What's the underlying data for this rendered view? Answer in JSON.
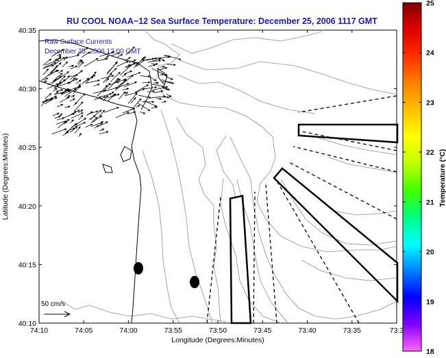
{
  "title": "RU COOL  NOAA−12  Sea Surface Temperature:  December 25, 2006 1117 GMT",
  "legend": {
    "raw_label": "Raw Surface Currents",
    "raw_time": "December 25, 2006 12:00 GMT",
    "scale_label": "50 cm/s"
  },
  "axes": {
    "xlabel": "Longitude (Degrees:Minutes)",
    "ylabel": "Latitude (Degrees:Minutes)",
    "x_ticks": [
      "74:10",
      "74:05",
      "74:00",
      "73:55",
      "73:50",
      "73:45",
      "73:40",
      "73:35",
      "73:3"
    ],
    "y_ticks": [
      "40:35",
      "40:30",
      "40:25",
      "40:20",
      "40:15",
      "40:10"
    ]
  },
  "colorbar": {
    "label": "Temperature (°C)",
    "ticks": [
      "25",
      "24",
      "23",
      "22",
      "21",
      "20",
      "19",
      "18"
    ],
    "min": 18,
    "max": 25,
    "colormap": [
      "#ff66ff",
      "#8000ff",
      "#0000ff",
      "#0080ff",
      "#00ffff",
      "#00ff80",
      "#40ff00",
      "#c0ff00",
      "#ffff00",
      "#ffc000",
      "#ff8000",
      "#ff3000",
      "#e00000",
      "#800000"
    ]
  },
  "colors": {
    "title": "#1a1aa6",
    "legend_text": "#1a1aa6",
    "axis": "#000000",
    "contour": "#8c8c8c"
  }
}
